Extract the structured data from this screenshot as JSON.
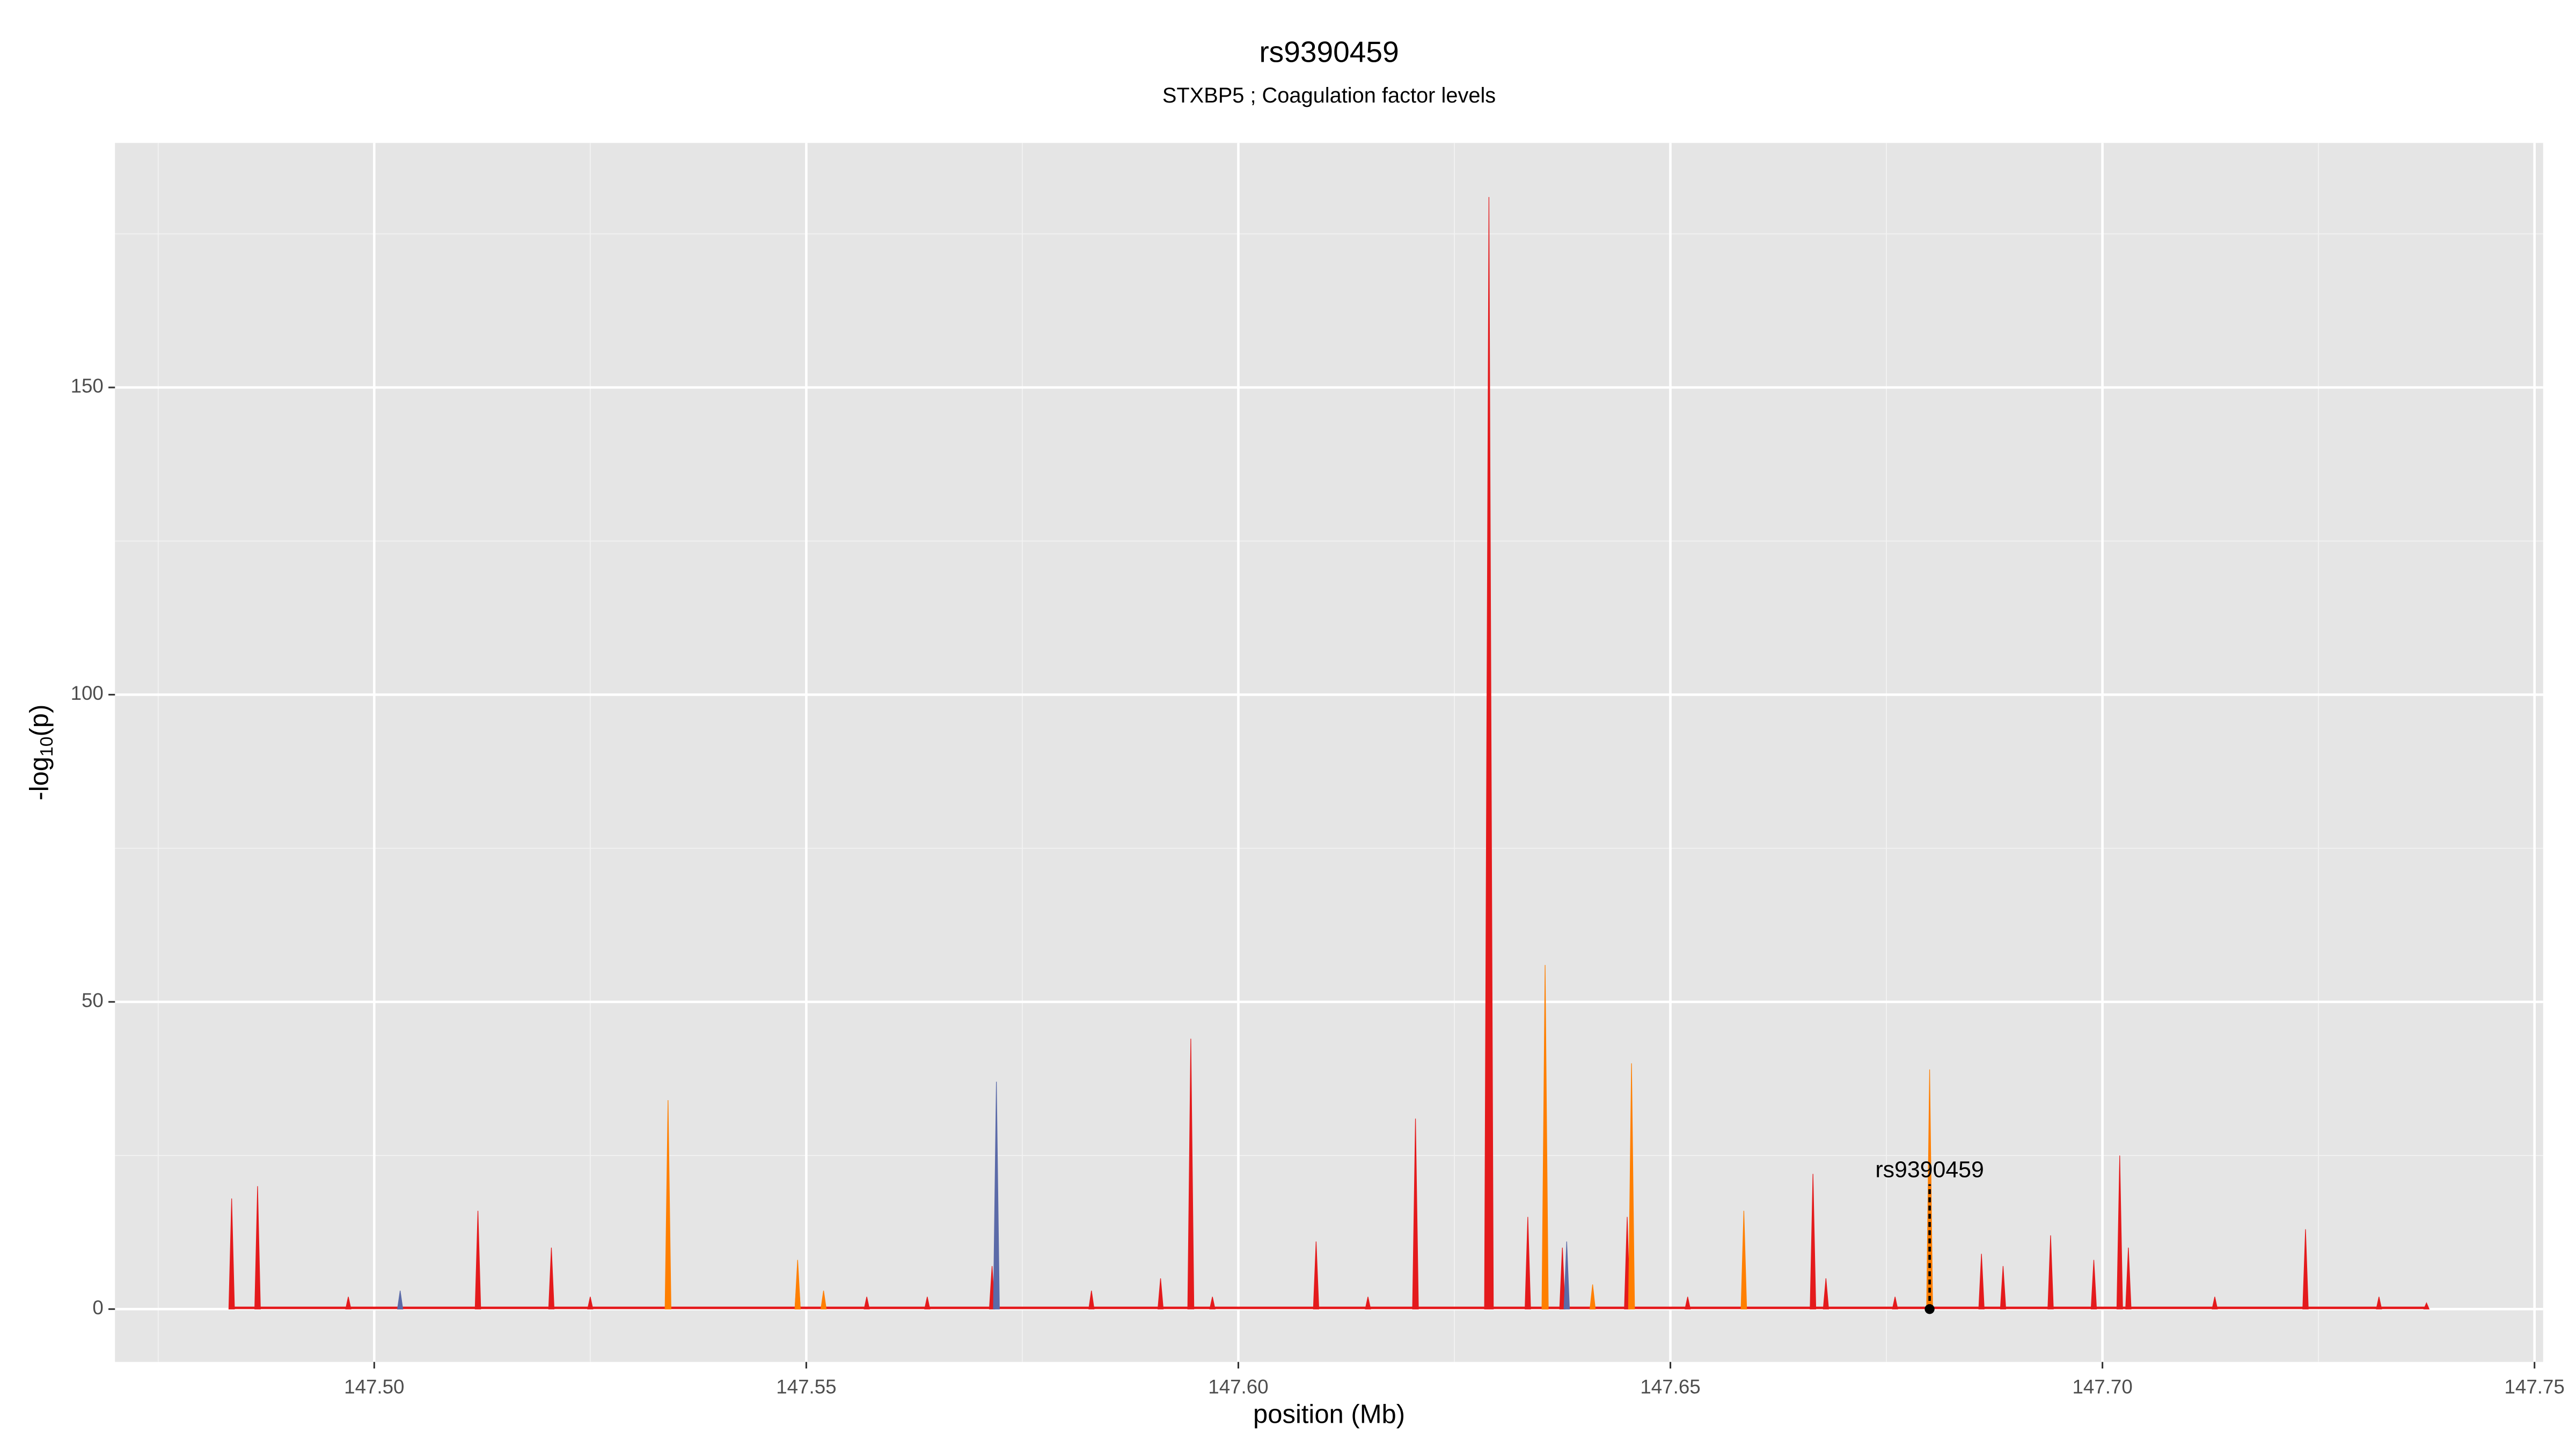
{
  "chart_data": {
    "type": "area",
    "title": "rs9390459",
    "subtitle": "STXBP5 ; Coagulation factor levels",
    "x_label": "position (Mb)",
    "y_label": {
      "prefix": "-log",
      "sub": "10",
      "suffix": "(p)"
    },
    "xlim": [
      147.47,
      147.751
    ],
    "ylim": [
      -8.6,
      189.8
    ],
    "xticks": [
      {
        "value": 147.5,
        "label": "147.50"
      },
      147.55,
      {
        "value": 147.6,
        "label": "147.60"
      },
      147.65,
      {
        "value": 147.7,
        "label": "147.70"
      },
      147.75
    ],
    "x_minor_ticks": [
      147.475,
      147.525,
      147.575,
      147.625,
      147.675,
      147.725
    ],
    "yticks": [
      0,
      50,
      100,
      150
    ],
    "y_minor_ticks": [
      25,
      75,
      125,
      175
    ],
    "grid": true,
    "series": [
      {
        "name": "red",
        "color": "#e41a1c",
        "x": [
          147.4835,
          147.4865,
          147.497,
          147.503,
          147.512,
          147.5205,
          147.525,
          147.549,
          147.557,
          147.564,
          147.5715,
          147.583,
          147.591,
          147.5945,
          147.597,
          147.609,
          147.615,
          147.6205,
          147.629,
          147.6335,
          147.6355,
          147.6375,
          147.641,
          147.645,
          147.652,
          147.6665,
          147.668,
          147.676,
          147.686,
          147.6885,
          147.694,
          147.699,
          147.702,
          147.703,
          147.713,
          147.7235,
          147.732,
          147.7375
        ],
        "values": [
          18,
          20,
          2,
          2,
          16,
          10,
          2,
          7,
          2,
          2,
          7,
          3,
          5,
          44,
          2,
          11,
          2,
          31,
          181,
          15,
          30,
          10,
          3,
          15,
          2,
          22,
          5,
          2,
          9,
          7,
          12,
          8,
          25,
          10,
          2,
          13,
          2,
          1
        ]
      },
      {
        "name": "orange",
        "color": "#ff7f00",
        "x": [
          147.534,
          147.549,
          147.552,
          147.6355,
          147.641,
          147.6455,
          147.6585,
          147.68
        ],
        "values": [
          34,
          8,
          3,
          56,
          4,
          40,
          16,
          39
        ]
      },
      {
        "name": "blue",
        "color": "#5b6aa8",
        "x": [
          147.503,
          147.572,
          147.638
        ],
        "values": [
          3,
          37,
          11
        ]
      }
    ],
    "annotation": {
      "label": "rs9390459",
      "x": 147.68,
      "y": 0
    }
  }
}
